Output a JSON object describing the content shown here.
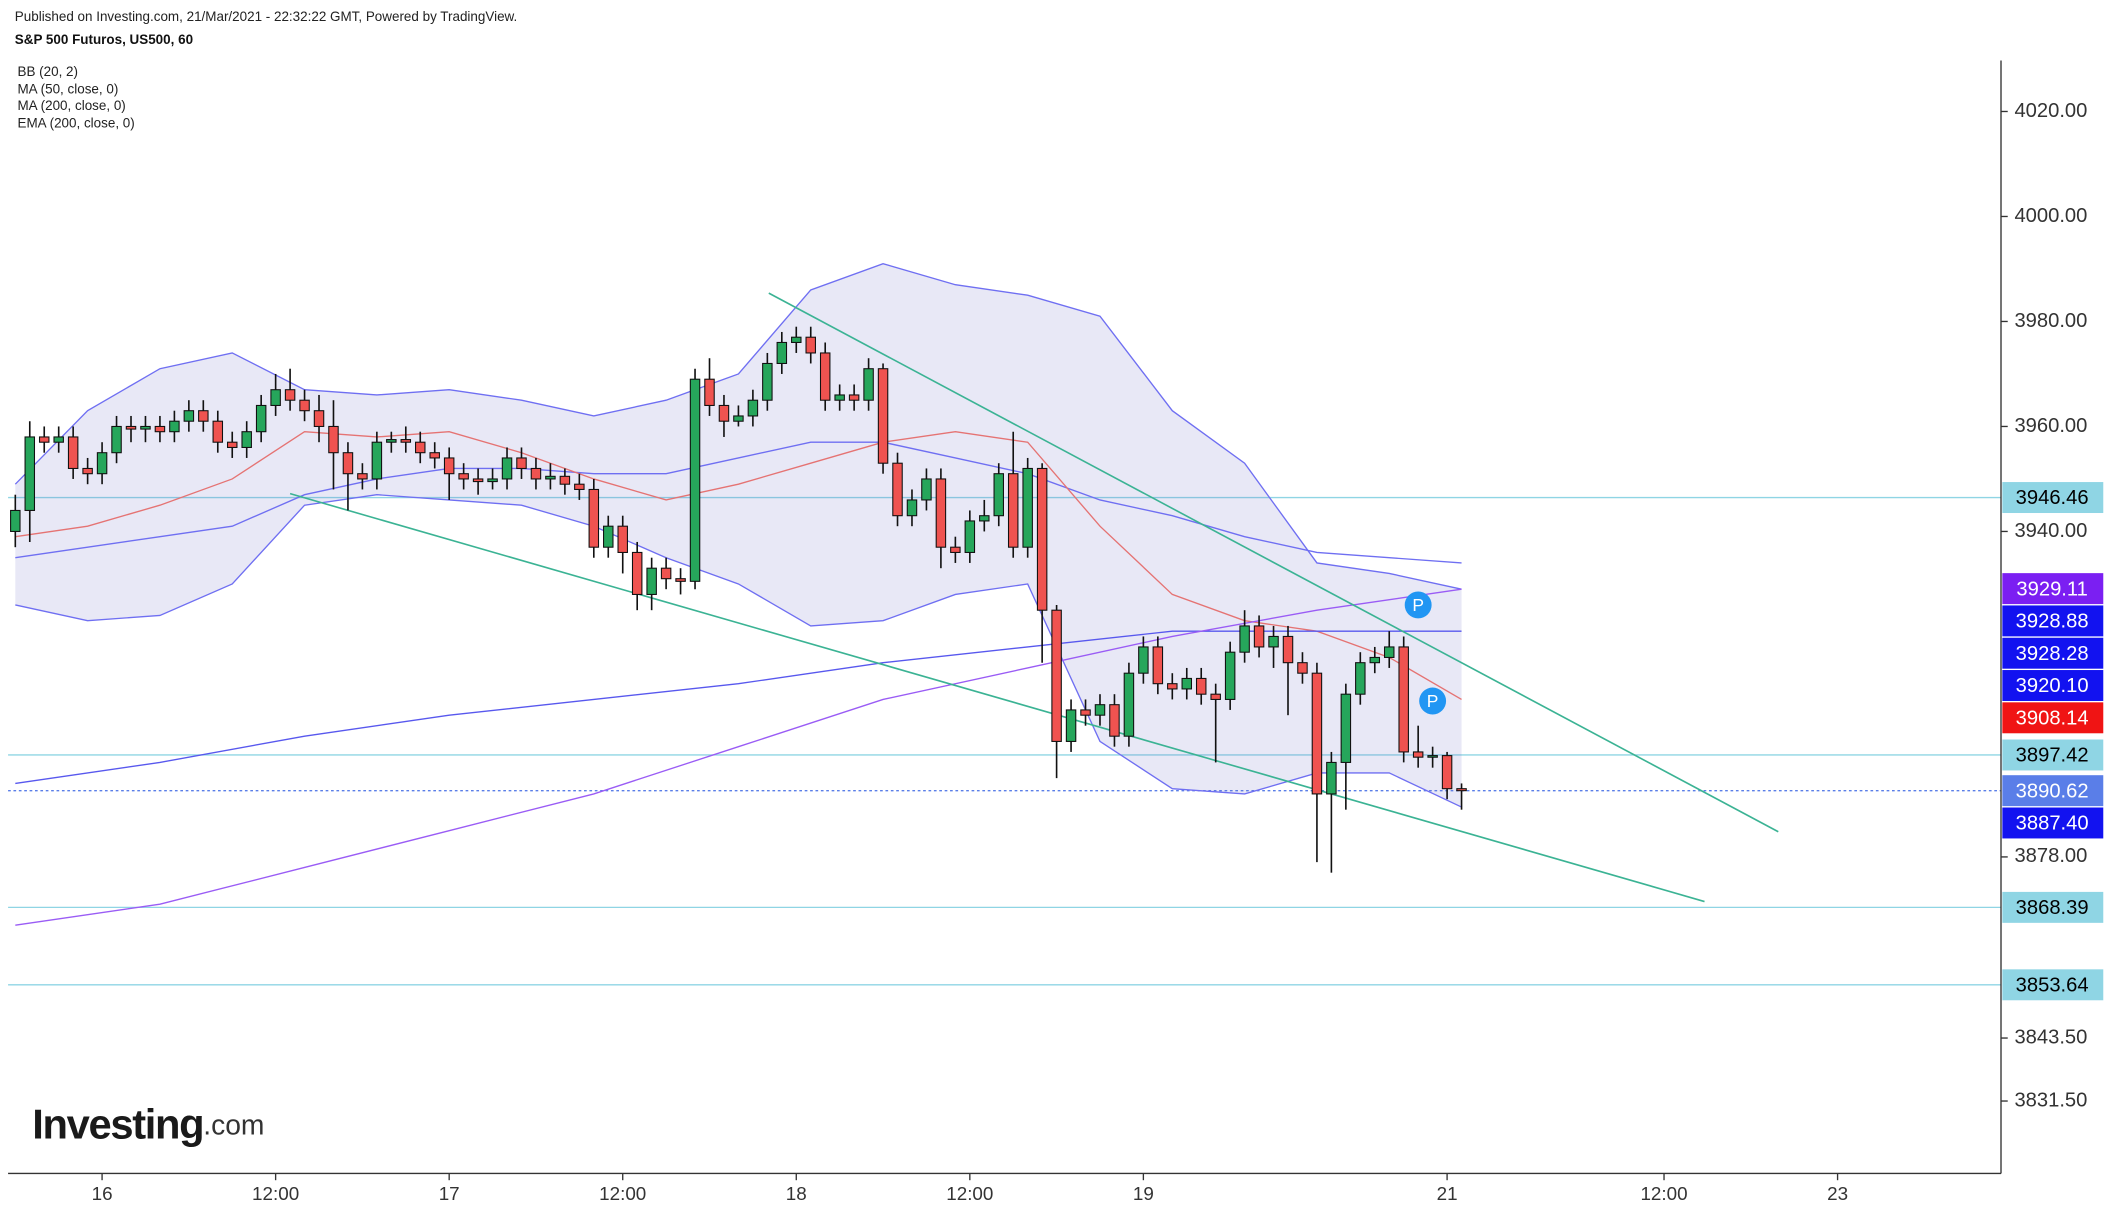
{
  "header": {
    "published": "Published on Investing.com, 21/Mar/2021 - 22:32:22 GMT, Powered by TradingView.",
    "title": "S&P 500 Futuros, US500, 60"
  },
  "logo": {
    "brand": "Investing",
    "suffix": ".com"
  },
  "chart_data": {
    "type": "candlestick",
    "legend": [
      "BB (20, 2)",
      "MA (50, close, 0)",
      "MA (200, close, 0)",
      "EMA (200, close, 0)"
    ],
    "up_color": "#26a65b",
    "down_color": "#ef5350",
    "open": [
      3940,
      3944,
      3958,
      3957,
      3958,
      3952,
      3951,
      3955,
      3960,
      3959.5,
      3960,
      3959,
      3961,
      3963,
      3961,
      3957,
      3956,
      3959,
      3964,
      3967,
      3965,
      3963,
      3960,
      3955,
      3951,
      3950,
      3957,
      3957.5,
      3957,
      3955,
      3954,
      3951,
      3950,
      3949.5,
      3950,
      3954,
      3952,
      3950,
      3950.5,
      3949,
      3948,
      3937,
      3941,
      3936,
      3928,
      3933,
      3931,
      3930.5,
      3969,
      3964,
      3961,
      3962,
      3965,
      3972,
      3976,
      3977,
      3974,
      3965,
      3966,
      3965,
      3971,
      3953,
      3943,
      3946,
      3950,
      3937,
      3936,
      3942,
      3943,
      3951,
      3937,
      3952,
      3925,
      3900,
      3906,
      3905,
      3907,
      3901,
      3913,
      3918,
      3911,
      3910,
      3912,
      3909,
      3908,
      3917,
      3922,
      3918,
      3920,
      3915,
      3913,
      3890,
      3896,
      3909,
      3915,
      3916,
      3918,
      3898,
      3897,
      3897.3,
      3891
    ],
    "high": [
      3947,
      3961,
      3960,
      3960,
      3960,
      3954,
      3957,
      3962,
      3962,
      3962,
      3962,
      3963,
      3965,
      3965,
      3963,
      3959,
      3961,
      3966,
      3970,
      3971,
      3967,
      3966,
      3965,
      3957,
      3953,
      3959,
      3959,
      3960,
      3959,
      3957,
      3956,
      3953,
      3952,
      3952,
      3956,
      3956,
      3954,
      3953,
      3952,
      3951,
      3950,
      3943,
      3943,
      3938,
      3935,
      3935,
      3933,
      3971,
      3973,
      3966,
      3964,
      3967,
      3974,
      3978,
      3979,
      3979,
      3976,
      3968,
      3968,
      3973,
      3972,
      3955,
      3948,
      3952,
      3952,
      3939,
      3944,
      3946,
      3953,
      3959,
      3954,
      3953,
      3926,
      3908,
      3908,
      3909,
      3909,
      3915,
      3920,
      3920,
      3913,
      3914,
      3914,
      3911,
      3919,
      3925,
      3924,
      3922,
      3922,
      3917,
      3915,
      3898,
      3911,
      3917,
      3918,
      3921,
      3920,
      3903,
      3899,
      3898,
      3892
    ],
    "low": [
      3937,
      3938,
      3955,
      3955,
      3950,
      3949,
      3949,
      3953,
      3957,
      3957,
      3957,
      3957,
      3959,
      3959,
      3955,
      3954,
      3954,
      3957,
      3962,
      3963,
      3961,
      3957,
      3948,
      3944,
      3948,
      3948,
      3955,
      3955,
      3953,
      3952,
      3946,
      3948,
      3947,
      3948,
      3948,
      3950,
      3948,
      3948,
      3947,
      3946,
      3935,
      3935,
      3932,
      3925,
      3925,
      3929,
      3928,
      3929,
      3962,
      3958,
      3960,
      3960,
      3963,
      3970,
      3974,
      3972,
      3963,
      3963,
      3963,
      3963,
      3951,
      3941,
      3941,
      3944,
      3933,
      3934,
      3934,
      3940,
      3941,
      3935,
      3935,
      3915,
      3893,
      3898,
      3903,
      3903,
      3899,
      3899,
      3911,
      3909,
      3908,
      3908,
      3907,
      3896,
      3906,
      3915,
      3916,
      3914,
      3905,
      3911,
      3877,
      3875,
      3887,
      3907,
      3913,
      3914,
      3896,
      3895,
      3895,
      3889,
      3887
    ],
    "close": [
      3944,
      3958,
      3957,
      3958,
      3952,
      3951,
      3955,
      3960,
      3959.5,
      3960,
      3959,
      3961,
      3963,
      3961,
      3957,
      3956,
      3959,
      3964,
      3967,
      3965,
      3963,
      3960,
      3955,
      3951,
      3950,
      3957,
      3957.5,
      3957,
      3955,
      3954,
      3951,
      3950,
      3949.5,
      3950,
      3954,
      3952,
      3950,
      3950.5,
      3949,
      3948,
      3937,
      3941,
      3936,
      3928,
      3933,
      3931,
      3930.5,
      3969,
      3964,
      3961,
      3962,
      3965,
      3972,
      3976,
      3977,
      3974,
      3965,
      3966,
      3965,
      3971,
      3953,
      3943,
      3946,
      3950,
      3937,
      3936,
      3942,
      3943,
      3951,
      3937,
      3952,
      3925,
      3900,
      3906,
      3905,
      3907,
      3901,
      3913,
      3918,
      3911,
      3910,
      3912,
      3909,
      3908,
      3917,
      3922,
      3918,
      3920,
      3915,
      3913,
      3890,
      3896,
      3909,
      3915,
      3916,
      3918,
      3898,
      3897,
      3897.3,
      3891,
      3890.62
    ],
    "bollinger": {
      "color": "#6f6ff2",
      "fill": "rgba(120,120,200,0.17)",
      "x": [
        0,
        5,
        10,
        15,
        20,
        25,
        30,
        35,
        40,
        45,
        50,
        55,
        60,
        65,
        70,
        75,
        80,
        85,
        90,
        95,
        100
      ],
      "upper": [
        3949,
        3963,
        3971,
        3974,
        3967,
        3966,
        3967,
        3965,
        3962,
        3965,
        3970,
        3986,
        3991,
        3987,
        3985,
        3981,
        3963,
        3953,
        3934,
        3932,
        3929
      ],
      "middle": [
        3935,
        3937,
        3939,
        3941,
        3947,
        3950,
        3952,
        3952,
        3951,
        3951,
        3954,
        3957,
        3957,
        3954,
        3951,
        3946,
        3943,
        3939,
        3936,
        3935,
        3934
      ],
      "lower": [
        3926,
        3923,
        3924,
        3930,
        3945,
        3947,
        3946,
        3945,
        3941,
        3935,
        3930,
        3922,
        3923,
        3928,
        3930,
        3900,
        3891,
        3890,
        3894,
        3894,
        3887.5
      ]
    },
    "lines": [
      {
        "color": "#e57373",
        "x": [
          0,
          5,
          10,
          15,
          20,
          25,
          30,
          35,
          40,
          45,
          50,
          55,
          60,
          65,
          70,
          75,
          80,
          85,
          90,
          95,
          100
        ],
        "values": [
          3939,
          3941,
          3945,
          3950,
          3959,
          3958,
          3959,
          3955,
          3950,
          3946,
          3949,
          3953,
          3957,
          3959,
          3957,
          3941,
          3928,
          3923,
          3921,
          3916,
          3908
        ]
      },
      {
        "color": "#5858ee",
        "x": [
          0,
          10,
          20,
          30,
          40,
          50,
          60,
          70,
          80,
          90,
          100
        ],
        "values": [
          3892,
          3896,
          3901,
          3905,
          3908,
          3911,
          3915,
          3918,
          3921,
          3921,
          3921
        ]
      },
      {
        "color": "#9a5cf5",
        "x": [
          0,
          10,
          20,
          30,
          40,
          50,
          60,
          70,
          80,
          90,
          100
        ],
        "values": [
          3865,
          3869,
          3876,
          3883,
          3890,
          3899,
          3908,
          3914,
          3920,
          3925,
          3929
        ]
      }
    ],
    "trendline_color": "#3bb394",
    "trendlines": [
      {
        "x": [
          52.1,
          121.9
        ],
        "y": [
          3985.4,
          3882.8
        ]
      },
      {
        "x": [
          19,
          116.8
        ],
        "y": [
          3947.2,
          3869.5
        ]
      }
    ],
    "marker_color": "#2196f3",
    "markers": [
      {
        "label": "P",
        "x": 97,
        "y": 3926
      },
      {
        "label": "P",
        "x": 98,
        "y": 3907.7
      }
    ],
    "price_labels": [
      {
        "value": 3946.46,
        "color": "#8fd5e4",
        "text_color": "#000",
        "line": true,
        "dash": false
      },
      {
        "value": 3929.11,
        "color": "#7b1ff2",
        "text_color": "#fff",
        "line": false,
        "dash": false
      },
      {
        "value": 3928.88,
        "color": "#1212f0",
        "text_color": "#fff",
        "line": false,
        "dash": false
      },
      {
        "value": 3928.28,
        "color": "#1212f0",
        "text_color": "#fff",
        "line": false,
        "dash": false
      },
      {
        "value": 3920.1,
        "label": "3920.10",
        "color": "#1212f0",
        "text_color": "#fff",
        "line": false,
        "dash": false
      },
      {
        "value": 3908.14,
        "color": "#f01414",
        "text_color": "#fff",
        "line": false,
        "dash": false
      },
      {
        "value": 3897.42,
        "color": "#8fd5e4",
        "text_color": "#000",
        "line": true,
        "dash": false
      },
      {
        "value": 3890.62,
        "color": "#5a7ee8",
        "text_color": "#fff",
        "line": true,
        "dash": true
      },
      {
        "value": 3887.4,
        "label": "3887.40",
        "color": "#1212f0",
        "text_color": "#fff",
        "line": false,
        "dash": false
      },
      {
        "value": 3868.39,
        "color": "#8fd5e4",
        "text_color": "#000",
        "line": true,
        "dash": false
      },
      {
        "value": 3853.64,
        "color": "#8fd5e4",
        "text_color": "#000",
        "line": true,
        "dash": false
      }
    ],
    "xlim": [
      -0.5,
      137.3
    ],
    "xticks": [
      {
        "value": 6,
        "label": "16"
      },
      {
        "value": 18,
        "label": "12:00"
      },
      {
        "value": 30,
        "label": "17"
      },
      {
        "value": 42,
        "label": "12:00"
      },
      {
        "value": 54,
        "label": "18"
      },
      {
        "value": 66,
        "label": "12:00"
      },
      {
        "value": 78,
        "label": "19"
      },
      {
        "value": 99,
        "label": "21"
      },
      {
        "value": 114,
        "label": "12:00"
      },
      {
        "value": 126,
        "label": "23"
      }
    ],
    "ylim": [
      3817.7,
      4029.7
    ],
    "yticks": [
      {
        "value": 4020,
        "label": "4020.00"
      },
      {
        "value": 4000,
        "label": "4000.00"
      },
      {
        "value": 3980,
        "label": "3980.00"
      },
      {
        "value": 3960,
        "label": "3960.00"
      },
      {
        "value": 3940,
        "label": "3940.00"
      },
      {
        "value": 3878,
        "label": "3878.00"
      },
      {
        "value": 3843.5,
        "label": "3843.50"
      },
      {
        "value": 3831.5,
        "label": "3831.50"
      }
    ]
  }
}
